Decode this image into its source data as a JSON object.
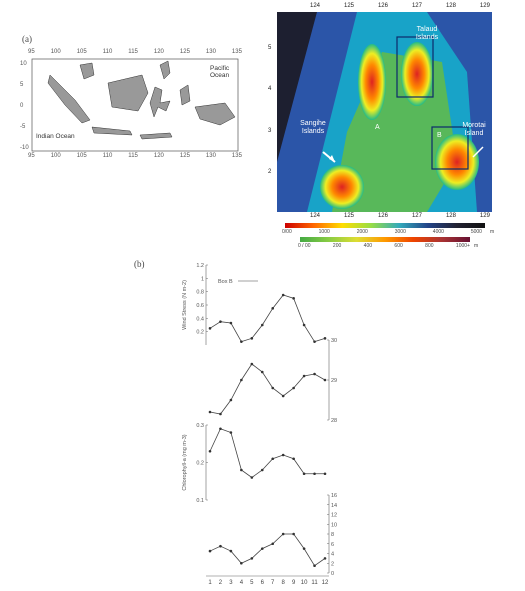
{
  "figure": {
    "panel_a_label": "(a)",
    "panel_b_label": "(b)"
  },
  "map_a": {
    "lon_ticks_top": [
      "95",
      "100",
      "105",
      "110",
      "115",
      "120",
      "125",
      "130",
      "135"
    ],
    "lon_ticks_bottom": [
      "95",
      "100",
      "105",
      "110",
      "115",
      "120",
      "125",
      "130",
      "135"
    ],
    "lat_ticks": [
      "10",
      "5",
      "0",
      "-5",
      "-10"
    ],
    "pacific_label": "Pacific Ocean",
    "indian_label": "Indian Ocean"
  },
  "sat_map": {
    "lon_ticks_top": [
      "124",
      "125",
      "126",
      "127",
      "128",
      "129"
    ],
    "lon_ticks_bottom": [
      "124",
      "125",
      "126",
      "127",
      "128",
      "129"
    ],
    "lat_ticks": [
      "5",
      "4",
      "3",
      "2"
    ],
    "talaud_label": "Talaud Islands",
    "sangihe_label": "Sangihe Islands",
    "morotai_label": "Morotai Island",
    "box_a_label": "A",
    "box_b_label": "B",
    "scale_top": [
      "0/00",
      "1000",
      "2000",
      "3000",
      "4000",
      "5000"
    ],
    "scale_top_unit": "m",
    "scale_bottom": [
      "0 / 00",
      "200",
      "400",
      "600",
      "800",
      "1000+"
    ],
    "scale_bottom_unit": "m"
  },
  "chart_data": [
    {
      "type": "line",
      "x": [
        1,
        2,
        3,
        4,
        5,
        6,
        7,
        8,
        9,
        10,
        11,
        12
      ],
      "series": [
        {
          "name": "Box B",
          "values": [
            0.25,
            0.35,
            0.33,
            0.05,
            0.1,
            0.3,
            0.55,
            0.75,
            0.7,
            0.3,
            0.05,
            0.1
          ]
        }
      ],
      "ylabel": "Wind Stress (N m-2)",
      "yticks": [
        "1.2",
        "1",
        "0.8",
        "0.6",
        "0.4",
        "0.2"
      ],
      "ylim": [
        0,
        1.2
      ]
    },
    {
      "type": "line",
      "x": [
        1,
        2,
        3,
        4,
        5,
        6,
        7,
        8,
        9,
        10,
        11,
        12
      ],
      "series": [
        {
          "values": [
            28.2,
            28.15,
            28.5,
            29.0,
            29.4,
            29.2,
            28.8,
            28.6,
            28.8,
            29.1,
            29.15,
            29.0
          ]
        }
      ],
      "ylabel": "SST (°C)",
      "yticks": [
        "30",
        "29",
        "28"
      ],
      "ylim": [
        28,
        30
      ]
    },
    {
      "type": "line",
      "x": [
        1,
        2,
        3,
        4,
        5,
        6,
        7,
        8,
        9,
        10,
        11,
        12
      ],
      "series": [
        {
          "values": [
            0.23,
            0.29,
            0.28,
            0.18,
            0.16,
            0.18,
            0.21,
            0.22,
            0.21,
            0.17,
            0.17,
            0.17
          ]
        }
      ],
      "ylabel": "Chlorophyll-a (mg m-3)",
      "yticks": [
        "0.3",
        "0.2",
        "0.1"
      ],
      "ylim": [
        0.1,
        0.3
      ]
    },
    {
      "type": "line",
      "x": [
        1,
        2,
        3,
        4,
        5,
        6,
        7,
        8,
        9,
        10,
        11,
        12
      ],
      "series": [
        {
          "values": [
            4.5,
            5.5,
            4.5,
            2.0,
            3.0,
            5.0,
            6.0,
            8.0,
            8.0,
            5.0,
            1.5,
            3.0
          ]
        }
      ],
      "ylabel": "Ekman Transport (m² s-1)",
      "yticks": [
        "16",
        "14",
        "12",
        "10",
        "8",
        "6",
        "4",
        "2",
        "0"
      ],
      "ylim": [
        0,
        16
      ],
      "xticks": [
        "1",
        "2",
        "3",
        "4",
        "5",
        "6",
        "7",
        "8",
        "9",
        "10",
        "11",
        "12"
      ]
    }
  ]
}
